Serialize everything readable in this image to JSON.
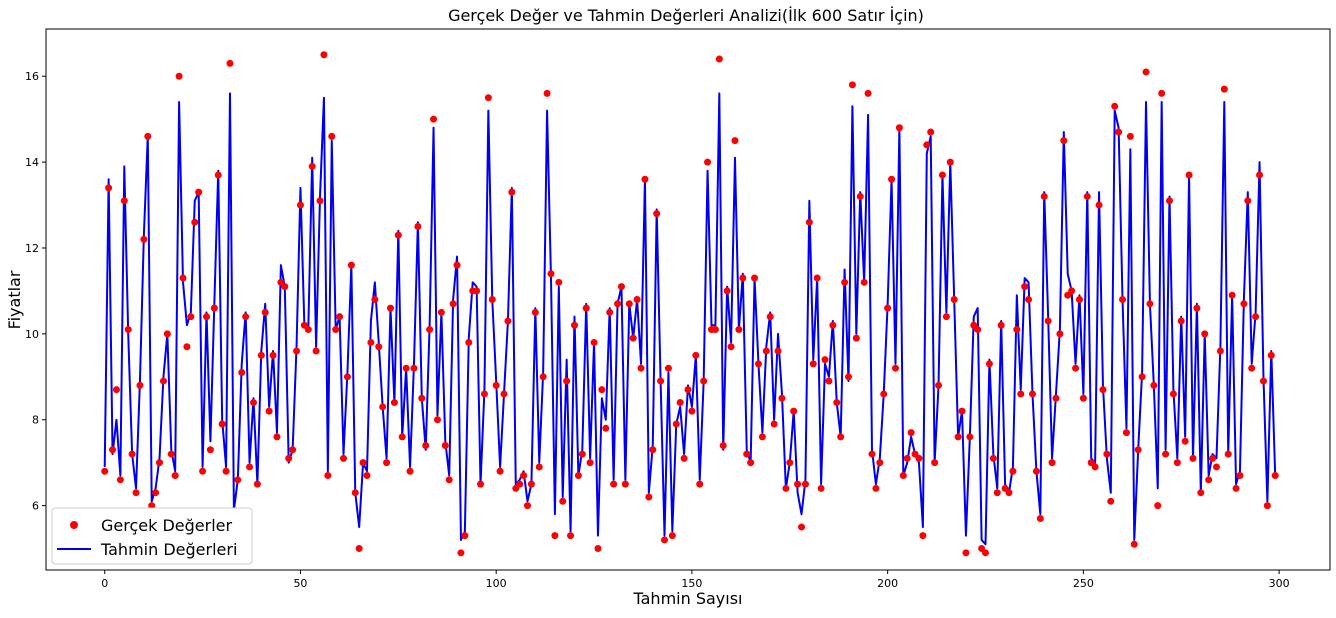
{
  "chart_data": {
    "type": "line",
    "title": "Gerçek Değer ve Tahmin Değerleri Analizi(İlk 600 Satır İçin)",
    "xlabel": "Tahmin Sayısı",
    "ylabel": "Fiyatlar",
    "xlim": [
      -15,
      313
    ],
    "ylim": [
      4.5,
      17.1
    ],
    "xticks": [
      0,
      50,
      100,
      150,
      200,
      250,
      300
    ],
    "yticks": [
      6,
      8,
      10,
      12,
      14,
      16
    ],
    "grid": false,
    "legend_position": "lower-left",
    "series": [
      {
        "name": "Gerçek Değerler",
        "kind": "scatter",
        "color": "#ff0000",
        "x": [
          0,
          1,
          2,
          3,
          4,
          5,
          6,
          7,
          8,
          9,
          10,
          11,
          12,
          13,
          14,
          15,
          16,
          17,
          18,
          19,
          20,
          21,
          22,
          23,
          24,
          25,
          26,
          27,
          28,
          29,
          30,
          31,
          32,
          33,
          34,
          35,
          36,
          37,
          38,
          39,
          40,
          41,
          42,
          43,
          44,
          45,
          46,
          47,
          48,
          49,
          50,
          51,
          52,
          53,
          54,
          55,
          56,
          57,
          58,
          59,
          60,
          61,
          62,
          63,
          64,
          65,
          66,
          67,
          68,
          69,
          70,
          71,
          72,
          73,
          74,
          75,
          76,
          77,
          78,
          79,
          80,
          81,
          82,
          83,
          84,
          85,
          86,
          87,
          88,
          89,
          90,
          91,
          92,
          93,
          94,
          95,
          96,
          97,
          98,
          99,
          100,
          101,
          102,
          103,
          104,
          105,
          106,
          107,
          108,
          109,
          110,
          111,
          112,
          113,
          114,
          115,
          116,
          117,
          118,
          119,
          120,
          121,
          122,
          123,
          124,
          125,
          126,
          127,
          128,
          129,
          130,
          131,
          132,
          133,
          134,
          135,
          136,
          137,
          138,
          139,
          140,
          141,
          142,
          143,
          144,
          145,
          146,
          147,
          148,
          149,
          150,
          151,
          152,
          153,
          154,
          155,
          156,
          157,
          158,
          159,
          160,
          161,
          162,
          163,
          164,
          165,
          166,
          167,
          168,
          169,
          170,
          171,
          172,
          173,
          174,
          175,
          176,
          177,
          178,
          179,
          180,
          181,
          182,
          183,
          184,
          185,
          186,
          187,
          188,
          189,
          190,
          191,
          192,
          193,
          194,
          195,
          196,
          197,
          198,
          199,
          200,
          201,
          202,
          203,
          204,
          205,
          206,
          207,
          208,
          209,
          210,
          211,
          212,
          213,
          214,
          215,
          216,
          217,
          218,
          219,
          220,
          221,
          222,
          223,
          224,
          225,
          226,
          227,
          228,
          229,
          230,
          231,
          232,
          233,
          234,
          235,
          236,
          237,
          238,
          239,
          240,
          241,
          242,
          243,
          244,
          245,
          246,
          247,
          248,
          249,
          250,
          251,
          252,
          253,
          254,
          255,
          256,
          257,
          258,
          259,
          260,
          261,
          262,
          263,
          264,
          265,
          266,
          267,
          268,
          269,
          270,
          271,
          272,
          273,
          274,
          275,
          276,
          277,
          278,
          279,
          280,
          281,
          282,
          283,
          284,
          285,
          286,
          287,
          288,
          289,
          290,
          291,
          292,
          293,
          294,
          295,
          296,
          297,
          298,
          299
        ],
        "y": [
          6.8,
          13.4,
          7.3,
          8.7,
          6.6,
          13.1,
          10.1,
          7.2,
          6.3,
          8.8,
          12.2,
          14.6,
          6.0,
          6.3,
          7.0,
          8.9,
          10.0,
          7.2,
          6.7,
          16.0,
          11.3,
          9.7,
          10.4,
          12.6,
          13.3,
          6.8,
          10.4,
          7.3,
          10.6,
          13.7,
          7.9,
          6.8,
          16.3,
          5.8,
          6.6,
          9.1,
          10.4,
          6.9,
          8.4,
          6.5,
          9.5,
          10.5,
          8.2,
          9.5,
          7.6,
          11.2,
          11.1,
          7.1,
          7.3,
          9.6,
          13.0,
          10.2,
          10.1,
          13.9,
          9.6,
          13.1,
          16.5,
          6.7,
          14.6,
          10.1,
          10.4,
          7.1,
          9.0,
          11.6,
          6.3,
          5.0,
          7.0,
          6.7,
          9.8,
          10.8,
          9.7,
          8.3,
          7.0,
          10.6,
          8.4,
          12.3,
          7.6,
          9.2,
          6.8,
          9.2,
          12.5,
          8.5,
          7.4,
          10.1,
          15.0,
          8.0,
          10.5,
          7.4,
          6.6,
          10.7,
          11.6,
          4.9,
          5.3,
          9.8,
          11.0,
          11.0,
          6.5,
          8.6,
          15.5,
          10.8,
          8.8,
          6.8,
          8.6,
          10.3,
          13.3,
          6.4,
          6.5,
          6.7,
          6.0,
          6.5,
          10.5,
          6.9,
          9.0,
          15.6,
          11.4,
          5.3,
          11.2,
          6.1,
          8.9,
          5.3,
          10.2,
          6.7,
          7.2,
          10.6,
          7.0,
          9.8,
          5.0,
          8.7,
          7.8,
          10.5,
          6.5,
          10.7,
          11.1,
          6.5,
          10.7,
          9.9,
          10.8,
          9.2,
          13.6,
          6.2,
          7.3,
          12.8,
          8.9,
          5.2,
          9.2,
          5.3,
          7.9,
          8.4,
          7.1,
          8.7,
          8.2,
          9.5,
          6.5,
          8.9,
          14.0,
          10.1,
          10.1,
          16.4,
          7.4,
          11.0,
          9.7,
          14.5,
          10.1,
          11.3,
          7.2,
          7.0,
          11.3,
          9.3,
          7.6,
          9.6,
          10.4,
          7.9,
          9.6,
          8.5,
          6.4,
          7.0,
          8.2,
          6.5,
          5.5,
          6.5,
          12.6,
          9.3,
          11.3,
          6.4,
          9.4,
          8.9,
          10.2,
          8.4,
          7.6,
          11.2,
          9.0,
          15.8,
          9.9,
          13.2,
          11.2,
          15.6,
          7.2,
          6.4,
          7.0,
          8.6,
          10.6,
          13.6,
          9.2,
          14.8,
          6.7,
          7.1,
          7.7,
          7.2,
          7.1,
          5.3,
          14.4,
          14.7,
          7.0,
          8.8,
          13.7,
          10.4,
          14.0,
          10.8,
          7.6,
          8.2,
          4.9,
          7.6,
          10.2,
          10.1,
          5.0,
          4.9,
          9.3,
          7.1,
          6.3,
          10.2,
          6.4,
          6.3,
          6.8,
          10.1,
          8.6,
          11.1,
          10.8,
          8.6,
          6.8,
          5.7,
          13.2,
          10.3,
          7.0,
          8.5,
          10.0,
          14.5,
          10.9,
          11.0,
          9.2,
          10.8,
          8.5,
          13.2,
          7.0,
          6.9,
          13.0,
          8.7,
          7.2,
          6.1,
          15.3,
          14.7,
          10.8,
          7.7,
          14.6,
          5.1,
          7.3,
          9.0,
          16.1,
          10.7,
          8.8,
          6.0,
          15.6,
          7.2,
          13.1,
          8.6,
          7.0,
          10.3,
          7.5,
          13.7,
          7.1,
          10.6,
          6.3,
          10.0,
          6.6,
          7.1,
          6.9,
          9.6,
          15.7,
          7.2,
          10.9,
          6.4,
          6.7,
          10.7,
          13.1,
          9.2,
          10.4,
          13.7,
          8.9,
          6.0,
          9.5,
          6.7
        ]
      },
      {
        "name": "Tahmin Değerleri",
        "kind": "line",
        "color": "#0000ee",
        "x": [
          0,
          1,
          2,
          3,
          4,
          5,
          6,
          7,
          8,
          9,
          10,
          11,
          12,
          13,
          14,
          15,
          16,
          17,
          18,
          19,
          20,
          21,
          22,
          23,
          24,
          25,
          26,
          27,
          28,
          29,
          30,
          31,
          32,
          33,
          34,
          35,
          36,
          37,
          38,
          39,
          40,
          41,
          42,
          43,
          44,
          45,
          46,
          47,
          48,
          49,
          50,
          51,
          52,
          53,
          54,
          55,
          56,
          57,
          58,
          59,
          60,
          61,
          62,
          63,
          64,
          65,
          66,
          67,
          68,
          69,
          70,
          71,
          72,
          73,
          74,
          75,
          76,
          77,
          78,
          79,
          80,
          81,
          82,
          83,
          84,
          85,
          86,
          87,
          88,
          89,
          90,
          91,
          92,
          93,
          94,
          95,
          96,
          97,
          98,
          99,
          100,
          101,
          102,
          103,
          104,
          105,
          106,
          107,
          108,
          109,
          110,
          111,
          112,
          113,
          114,
          115,
          116,
          117,
          118,
          119,
          120,
          121,
          122,
          123,
          124,
          125,
          126,
          127,
          128,
          129,
          130,
          131,
          132,
          133,
          134,
          135,
          136,
          137,
          138,
          139,
          140,
          141,
          142,
          143,
          144,
          145,
          146,
          147,
          148,
          149,
          150,
          151,
          152,
          153,
          154,
          155,
          156,
          157,
          158,
          159,
          160,
          161,
          162,
          163,
          164,
          165,
          166,
          167,
          168,
          169,
          170,
          171,
          172,
          173,
          174,
          175,
          176,
          177,
          178,
          179,
          180,
          181,
          182,
          183,
          184,
          185,
          186,
          187,
          188,
          189,
          190,
          191,
          192,
          193,
          194,
          195,
          196,
          197,
          198,
          199,
          200,
          201,
          202,
          203,
          204,
          205,
          206,
          207,
          208,
          209,
          210,
          211,
          212,
          213,
          214,
          215,
          216,
          217,
          218,
          219,
          220,
          221,
          222,
          223,
          224,
          225,
          226,
          227,
          228,
          229,
          230,
          231,
          232,
          233,
          234,
          235,
          236,
          237,
          238,
          239,
          240,
          241,
          242,
          243,
          244,
          245,
          246,
          247,
          248,
          249,
          250,
          251,
          252,
          253,
          254,
          255,
          256,
          257,
          258,
          259,
          260,
          261,
          262,
          263,
          264,
          265,
          266,
          267,
          268,
          269,
          270,
          271,
          272,
          273,
          274,
          275,
          276,
          277,
          278,
          279,
          280,
          281,
          282,
          283,
          284,
          285,
          286,
          287,
          288,
          289,
          290,
          291,
          292,
          293,
          294,
          295,
          296,
          297,
          298,
          299
        ],
        "y": [
          6.9,
          13.6,
          7.2,
          8.0,
          6.7,
          13.9,
          10.0,
          7.2,
          6.4,
          8.9,
          12.3,
          14.6,
          6.1,
          6.4,
          7.1,
          9.0,
          10.0,
          7.3,
          6.8,
          15.4,
          11.2,
          10.2,
          10.5,
          13.1,
          13.3,
          6.9,
          10.5,
          7.5,
          10.7,
          13.8,
          8.0,
          6.9,
          15.6,
          5.9,
          6.6,
          9.3,
          10.5,
          7.0,
          8.5,
          6.5,
          9.6,
          10.7,
          8.3,
          9.6,
          7.7,
          11.6,
          11.1,
          7.0,
          7.3,
          9.7,
          13.4,
          10.2,
          10.1,
          14.1,
          9.7,
          13.2,
          15.5,
          6.8,
          14.5,
          10.1,
          10.4,
          7.2,
          9.1,
          11.6,
          6.3,
          5.5,
          7.0,
          6.8,
          10.3,
          11.2,
          9.8,
          8.3,
          7.1,
          10.6,
          8.4,
          12.4,
          7.6,
          9.2,
          6.9,
          9.3,
          12.6,
          8.5,
          7.3,
          10.2,
          14.8,
          8.1,
          10.5,
          7.5,
          6.7,
          10.8,
          11.8,
          5.2,
          5.4,
          9.9,
          11.2,
          11.1,
          6.5,
          8.7,
          15.2,
          10.8,
          8.9,
          6.9,
          8.6,
          10.3,
          13.4,
          6.5,
          6.6,
          6.8,
          6.1,
          6.5,
          10.6,
          7.0,
          9.1,
          15.2,
          11.3,
          5.8,
          11.1,
          6.2,
          9.4,
          5.4,
          10.4,
          6.7,
          7.3,
          10.7,
          7.1,
          9.8,
          5.3,
          8.5,
          8.0,
          10.6,
          6.6,
          10.7,
          11.1,
          6.6,
          10.7,
          9.9,
          10.8,
          9.3,
          13.6,
          6.3,
          7.4,
          12.9,
          8.9,
          5.3,
          9.1,
          5.4,
          7.9,
          8.3,
          7.2,
          8.8,
          8.3,
          9.5,
          6.6,
          8.9,
          13.8,
          10.2,
          10.2,
          15.6,
          7.3,
          11.1,
          9.8,
          14.1,
          10.1,
          11.4,
          7.3,
          7.0,
          11.3,
          9.3,
          7.7,
          9.7,
          10.5,
          8.0,
          10.0,
          8.6,
          6.4,
          7.0,
          8.2,
          6.3,
          5.8,
          6.6,
          13.1,
          9.4,
          11.3,
          6.5,
          9.3,
          9.0,
          10.3,
          8.4,
          7.6,
          11.5,
          8.9,
          15.3,
          10.0,
          13.3,
          11.2,
          15.1,
          7.3,
          6.5,
          7.1,
          8.6,
          10.7,
          13.6,
          9.3,
          14.8,
          6.7,
          7.0,
          7.6,
          7.2,
          7.0,
          5.5,
          14.2,
          14.6,
          7.0,
          8.8,
          13.7,
          10.5,
          14.0,
          10.8,
          7.6,
          8.2,
          5.3,
          7.6,
          10.4,
          10.6,
          5.2,
          5.1,
          9.4,
          7.2,
          6.4,
          10.3,
          6.5,
          6.3,
          6.9,
          10.9,
          8.7,
          11.3,
          11.2,
          8.6,
          6.8,
          5.8,
          13.3,
          10.4,
          7.1,
          8.6,
          10.1,
          14.7,
          11.4,
          11.0,
          9.3,
          10.9,
          8.6,
          13.3,
          7.1,
          7.0,
          13.3,
          8.8,
          7.1,
          6.3,
          15.2,
          14.8,
          10.8,
          7.8,
          14.3,
          5.2,
          7.3,
          9.1,
          15.4,
          10.7,
          8.8,
          6.4,
          15.4,
          7.3,
          13.2,
          8.7,
          7.1,
          10.4,
          7.6,
          13.7,
          7.1,
          10.7,
          6.3,
          10.0,
          6.7,
          7.2,
          7.1,
          9.7,
          15.4,
          7.2,
          10.9,
          6.5,
          6.8,
          10.8,
          13.3,
          9.3,
          10.5,
          14.0,
          9.0,
          6.1,
          9.6,
          6.7
        ]
      }
    ]
  }
}
